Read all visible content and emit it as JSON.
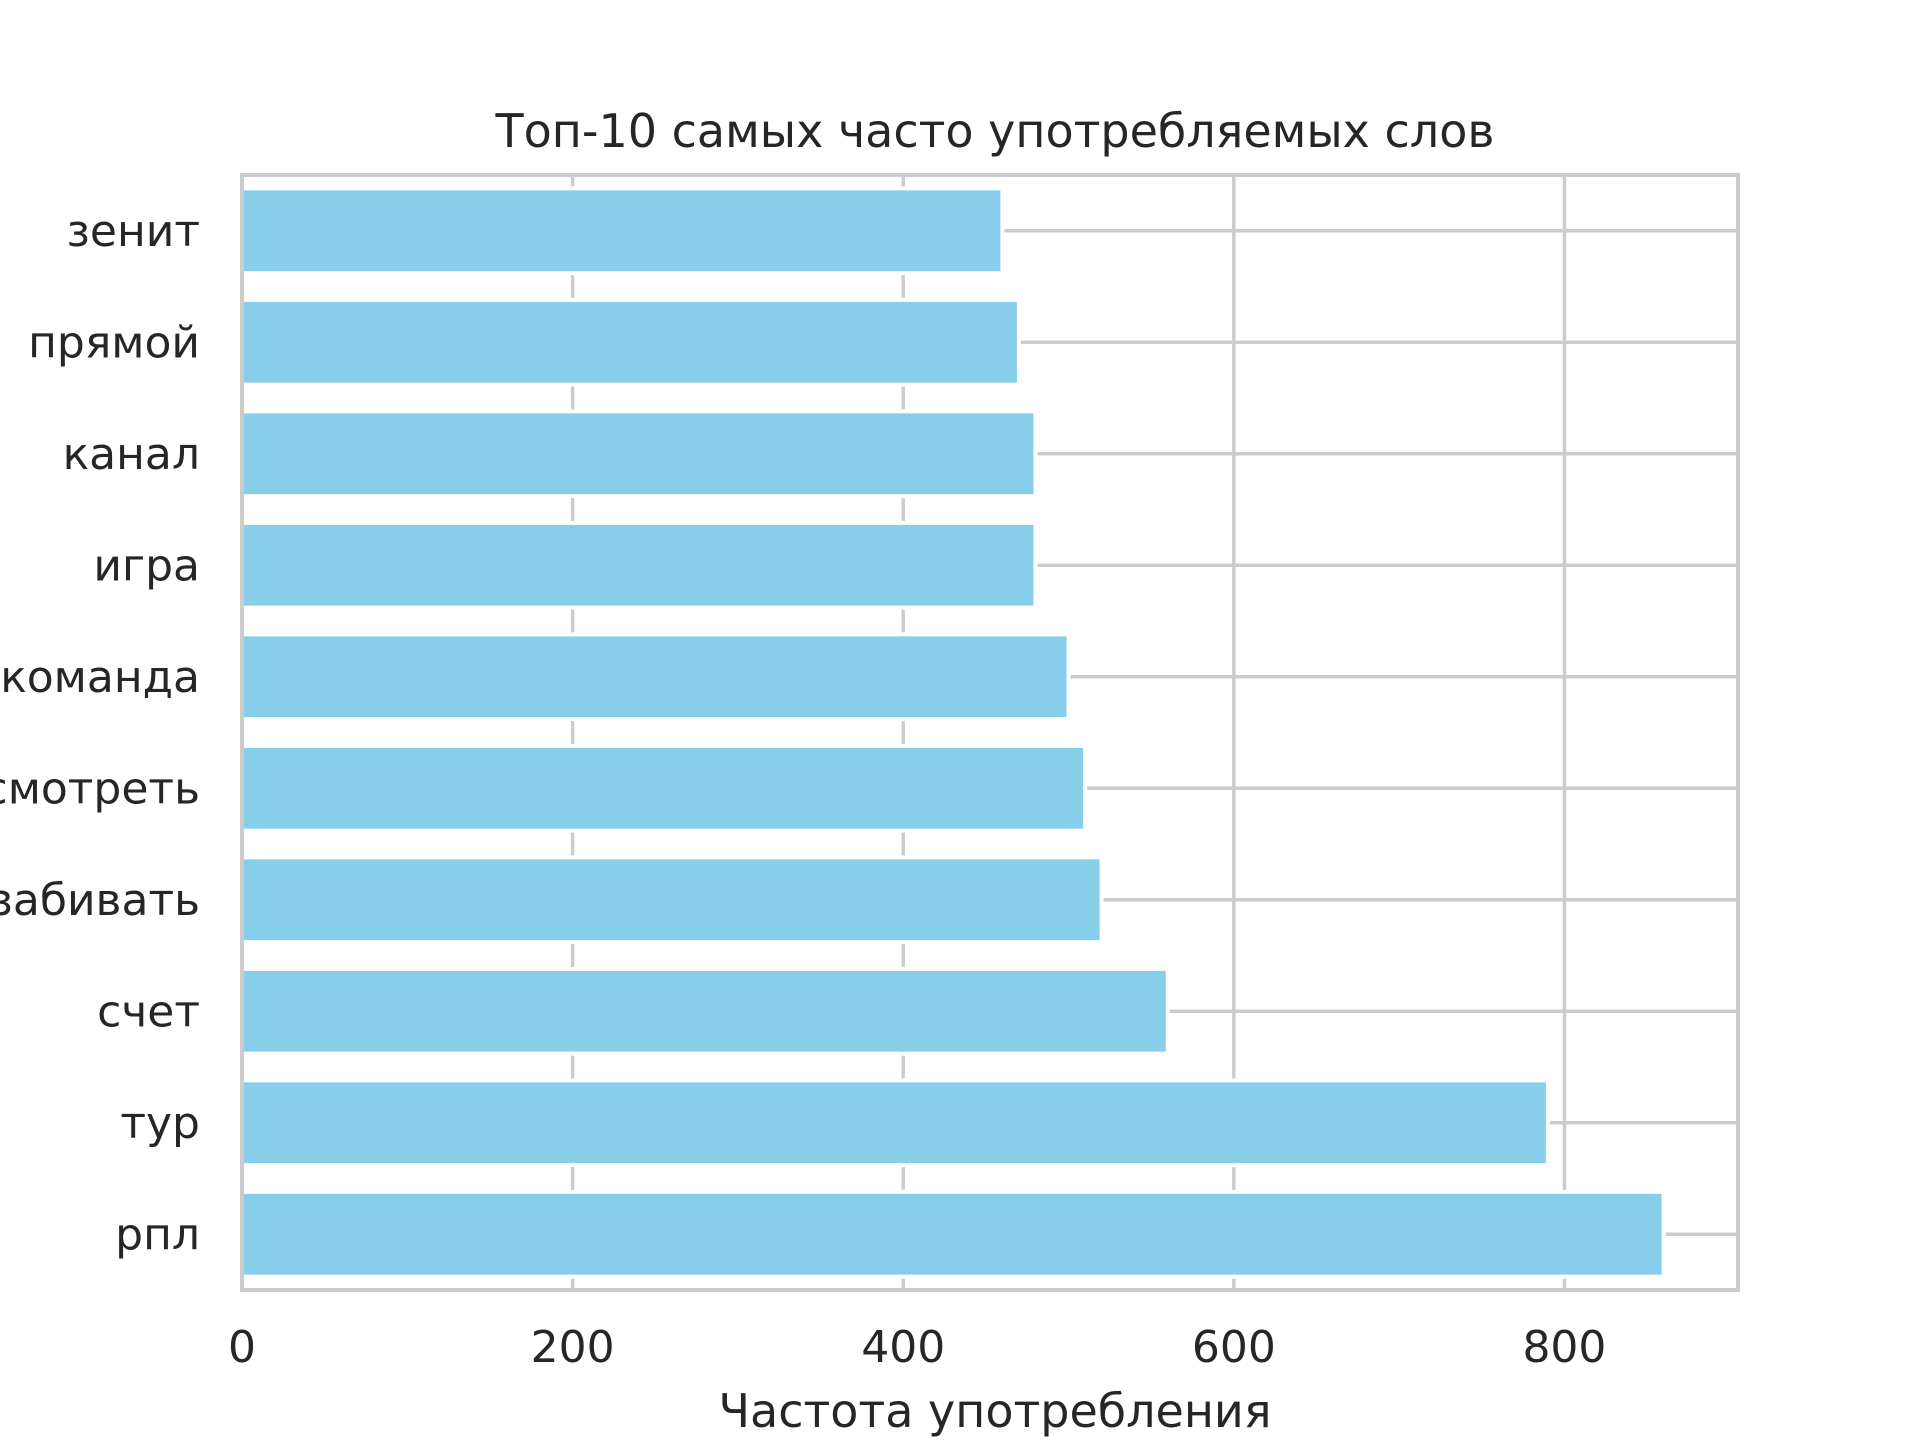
{
  "chart_data": {
    "type": "bar",
    "orientation": "horizontal",
    "title": "Топ-10 самых часто употребляемых слов",
    "xlabel": "Частота употребления",
    "ylabel": "",
    "categories": [
      "рпл",
      "тур",
      "счет",
      "забивать",
      "смотреть",
      "команда",
      "игра",
      "канал",
      "прямой",
      "зенит"
    ],
    "values": [
      860,
      790,
      560,
      520,
      510,
      500,
      480,
      480,
      470,
      460
    ],
    "xlim": [
      0,
      905
    ],
    "xticks": [
      0,
      200,
      400,
      600,
      800
    ],
    "xtick_labels": [
      "0",
      "200",
      "400",
      "600",
      "800"
    ],
    "grid": true,
    "bar_color": "#87ceeb",
    "grid_color": "#cccccc",
    "text_color": "#262626"
  }
}
